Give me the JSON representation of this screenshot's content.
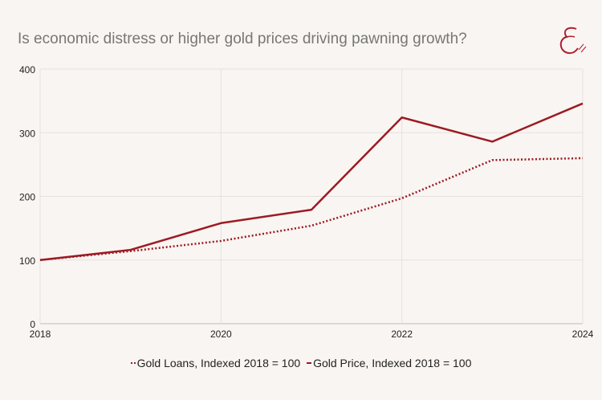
{
  "chart_data": {
    "type": "line",
    "title": "Is economic distress or higher gold prices driving pawning growth?",
    "x": [
      2018,
      2019,
      2020,
      2021,
      2022,
      2023,
      2024
    ],
    "x_ticks": [
      "2018",
      "2020",
      "2022",
      "2024"
    ],
    "y_ticks": [
      "0",
      "100",
      "200",
      "300",
      "400"
    ],
    "xlim": [
      2018,
      2024
    ],
    "ylim": [
      0,
      400
    ],
    "grid": true,
    "legend_placement": "bottom",
    "series": [
      {
        "name": "Gold Loans, Indexed 2018 = 100",
        "style": "dotted",
        "color": "#9b1b23",
        "values": [
          100,
          114,
          130,
          154,
          197,
          257,
          260
        ]
      },
      {
        "name": "Gold Price, Indexed 2018 = 100",
        "style": "solid",
        "color": "#9b1b23",
        "values": [
          100,
          116,
          158,
          179,
          324,
          286,
          346
        ]
      }
    ]
  },
  "logo": {
    "text": "E",
    "color": "#b01c2e"
  }
}
